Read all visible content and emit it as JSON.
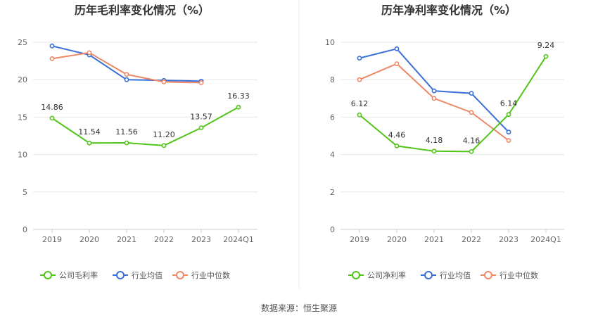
{
  "source": "数据来源：恒生聚源",
  "colors": {
    "company": "#52c41a",
    "industry_avg": "#3a6fd8",
    "industry_median": "#ee8866",
    "grid": "#e6e6e6",
    "axis": "#cccccc"
  },
  "chart_data": [
    {
      "type": "line",
      "title": "历年毛利率变化情况（%）",
      "categories": [
        "2019",
        "2020",
        "2021",
        "2022",
        "2023",
        "2024Q1"
      ],
      "ylim": [
        0,
        25
      ],
      "yticks": [
        "0",
        "5",
        "10",
        "15",
        "20",
        "25"
      ],
      "grid": true,
      "legend": "bottom",
      "series": [
        {
          "name": "公司毛利率",
          "key": "company",
          "values": [
            14.86,
            11.54,
            11.56,
            11.2,
            13.57,
            16.33
          ],
          "labels": [
            "14.86",
            "11.54",
            "11.56",
            "11.20",
            "13.57",
            "16.33"
          ]
        },
        {
          "name": "行业均值",
          "key": "industry_avg",
          "values": [
            24.5,
            23.3,
            20.0,
            19.9,
            19.8,
            null
          ]
        },
        {
          "name": "行业中位数",
          "key": "industry_median",
          "values": [
            22.8,
            23.6,
            20.7,
            19.7,
            19.6,
            null
          ]
        }
      ]
    },
    {
      "type": "line",
      "title": "历年净利率变化情况（%）",
      "categories": [
        "2019",
        "2020",
        "2021",
        "2022",
        "2023",
        "2024Q1"
      ],
      "ylim": [
        0,
        10
      ],
      "yticks": [
        "0",
        "2",
        "4",
        "6",
        "8",
        "10"
      ],
      "grid": true,
      "legend": "bottom",
      "series": [
        {
          "name": "公司净利率",
          "key": "company",
          "values": [
            6.12,
            4.46,
            4.18,
            4.16,
            6.14,
            9.24
          ],
          "labels": [
            "6.12",
            "4.46",
            "4.18",
            "4.16",
            "6.14",
            "9.24"
          ]
        },
        {
          "name": "行业均值",
          "key": "industry_avg",
          "values": [
            9.15,
            9.65,
            7.4,
            7.27,
            5.2,
            null
          ]
        },
        {
          "name": "行业中位数",
          "key": "industry_median",
          "values": [
            8.0,
            8.85,
            7.0,
            6.25,
            4.75,
            null
          ]
        }
      ]
    }
  ]
}
